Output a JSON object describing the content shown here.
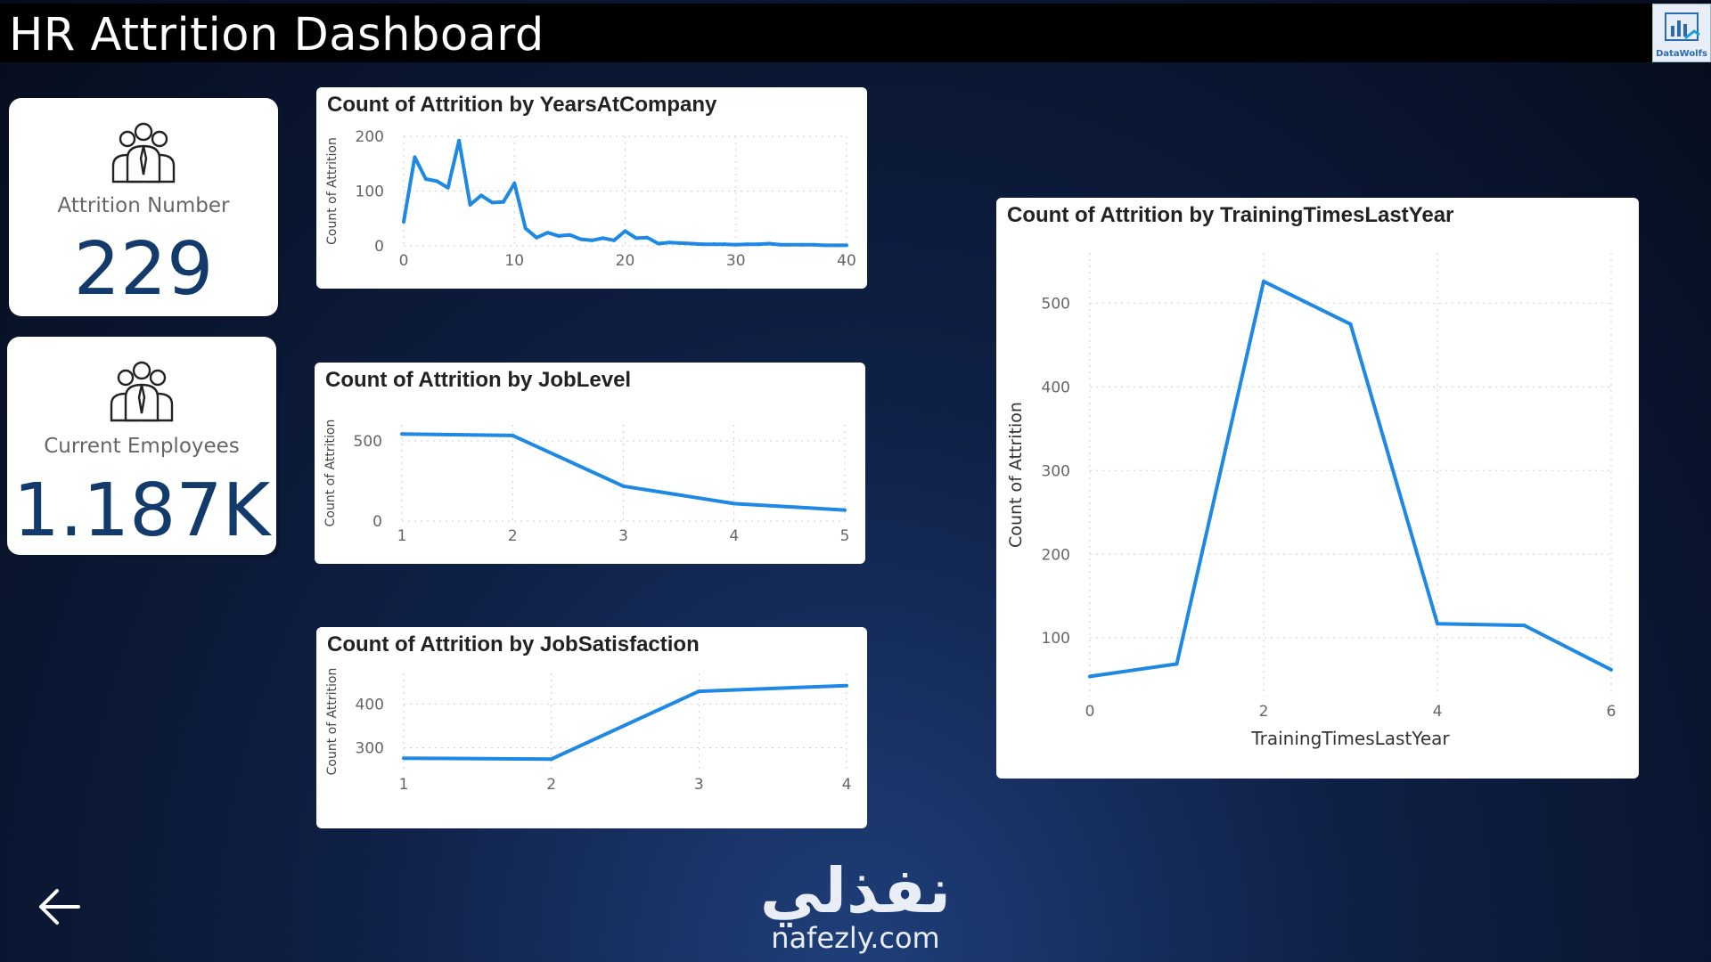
{
  "header": {
    "title": "HR Attrition Dashboard",
    "logo_text": "DataWolfs"
  },
  "kpis": [
    {
      "label": "Attrition Number",
      "value": "229",
      "icon": "people-group-icon"
    },
    {
      "label": "Current Employees",
      "value": "1.187K",
      "icon": "people-group-icon"
    }
  ],
  "charts": {
    "years": {
      "title": "Count of Attrition by YearsAtCompany",
      "ylabel": "Count of Attrition",
      "xlabel": ""
    },
    "joblevel": {
      "title": "Count of Attrition by JobLevel",
      "ylabel": "Count of Attrition",
      "xlabel": ""
    },
    "jobsat": {
      "title": "Count of Attrition by JobSatisfaction",
      "ylabel": "Count of Attrition",
      "xlabel": ""
    },
    "training": {
      "title": "Count of Attrition by TrainingTimesLastYear",
      "ylabel": "Count of Attrition",
      "xlabel": "TrainingTimesLastYear"
    }
  },
  "chart_data": [
    {
      "id": "years",
      "type": "line",
      "title": "Count of Attrition by YearsAtCompany",
      "ylabel": "Count of Attrition",
      "x": [
        0,
        1,
        2,
        3,
        4,
        5,
        6,
        7,
        8,
        9,
        10,
        11,
        12,
        13,
        14,
        15,
        16,
        17,
        18,
        19,
        20,
        21,
        22,
        23,
        24,
        25,
        26,
        27,
        28,
        29,
        30,
        31,
        32,
        33,
        34,
        35,
        36,
        37,
        38,
        39,
        40
      ],
      "y": [
        44,
        162,
        122,
        118,
        106,
        192,
        75,
        92,
        79,
        80,
        114,
        32,
        15,
        24,
        18,
        20,
        12,
        10,
        14,
        10,
        27,
        14,
        15,
        4,
        6,
        5,
        4,
        3,
        3,
        3,
        2,
        3,
        3,
        4,
        2,
        2,
        2,
        2,
        1,
        1,
        1
      ],
      "xlim": [
        0,
        40
      ],
      "ylim": [
        0,
        200
      ],
      "xticks": [
        0,
        10,
        20,
        30,
        40
      ],
      "yticks": [
        0,
        100,
        200
      ],
      "grid": true
    },
    {
      "id": "joblevel",
      "type": "line",
      "title": "Count of Attrition by JobLevel",
      "ylabel": "Count of Attrition",
      "x": [
        1,
        2,
        3,
        4,
        5
      ],
      "y": [
        543,
        534,
        218,
        109,
        69
      ],
      "xlim": [
        1,
        5
      ],
      "ylim": [
        0,
        600
      ],
      "xticks": [
        1,
        2,
        3,
        4,
        5
      ],
      "yticks": [
        0,
        500
      ],
      "grid": true
    },
    {
      "id": "jobsat",
      "type": "line",
      "title": "Count of Attrition by JobSatisfaction",
      "ylabel": "Count of Attrition",
      "x": [
        1,
        2,
        3,
        4
      ],
      "y": [
        276,
        274,
        429,
        442
      ],
      "xlim": [
        1,
        4
      ],
      "ylim": [
        250,
        470
      ],
      "xticks": [
        1,
        2,
        3,
        4
      ],
      "yticks": [
        300,
        400
      ],
      "grid": true
    },
    {
      "id": "training",
      "type": "line",
      "title": "Count of Attrition by TrainingTimesLastYear",
      "xlabel": "TrainingTimesLastYear",
      "ylabel": "Count of Attrition",
      "x": [
        0,
        1,
        2,
        3,
        4,
        5,
        6
      ],
      "y": [
        54,
        69,
        526,
        475,
        117,
        115,
        62
      ],
      "xlim": [
        0,
        6
      ],
      "ylim": [
        30,
        560
      ],
      "xticks": [
        0,
        2,
        4,
        6
      ],
      "yticks": [
        100,
        200,
        300,
        400,
        500
      ],
      "grid": true
    }
  ],
  "watermark": {
    "arabic": "نفذلي",
    "url": "nafezly.com"
  },
  "nav": {
    "back": "arrow-left-icon"
  }
}
